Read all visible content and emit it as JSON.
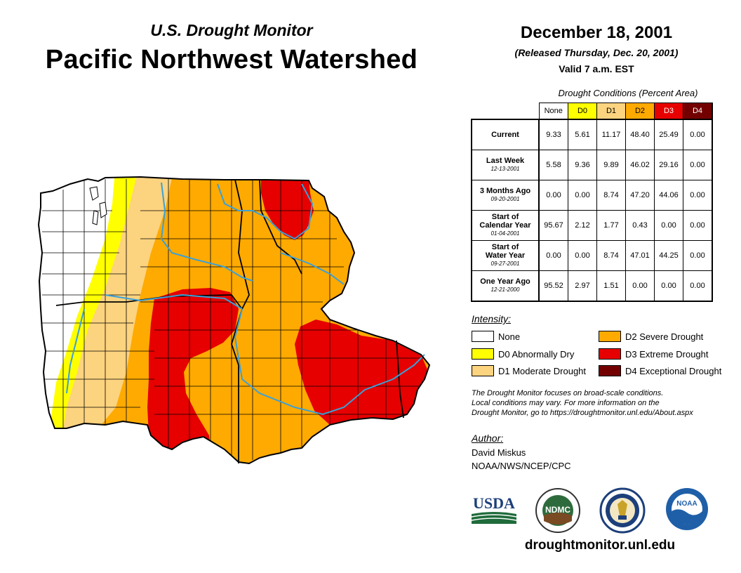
{
  "header": {
    "subtitle": "U.S. Drought Monitor",
    "title": "Pacific Northwest Watershed",
    "date": "December 18, 2001",
    "released": "(Released Thursday, Dec. 20, 2001)",
    "valid": "Valid 7 a.m. EST"
  },
  "table": {
    "caption": "Drought Conditions (Percent Area)",
    "columns": [
      "None",
      "D0",
      "D1",
      "D2",
      "D3",
      "D4"
    ],
    "column_colors": [
      "#ffffff",
      "#ffff00",
      "#fcd37f",
      "#ffaa00",
      "#e60000",
      "#730000"
    ],
    "rows": [
      {
        "label": "Current",
        "label2": "",
        "date": "",
        "values": [
          "9.33",
          "5.61",
          "11.17",
          "48.40",
          "25.49",
          "0.00"
        ]
      },
      {
        "label": "Last Week",
        "label2": "",
        "date": "12-13-2001",
        "values": [
          "5.58",
          "9.36",
          "9.89",
          "46.02",
          "29.16",
          "0.00"
        ]
      },
      {
        "label": "3 Months Ago",
        "label2": "",
        "date": "09-20-2001",
        "values": [
          "0.00",
          "0.00",
          "8.74",
          "47.20",
          "44.06",
          "0.00"
        ]
      },
      {
        "label": "Start of",
        "label2": "Calendar Year",
        "date": "01-04-2001",
        "values": [
          "95.67",
          "2.12",
          "1.77",
          "0.43",
          "0.00",
          "0.00"
        ]
      },
      {
        "label": "Start of",
        "label2": "Water Year",
        "date": "09-27-2001",
        "values": [
          "0.00",
          "0.00",
          "8.74",
          "47.01",
          "44.25",
          "0.00"
        ]
      },
      {
        "label": "One Year Ago",
        "label2": "",
        "date": "12-21-2000",
        "values": [
          "95.52",
          "2.97",
          "1.51",
          "0.00",
          "0.00",
          "0.00"
        ]
      }
    ]
  },
  "legend": {
    "heading": "Intensity:",
    "items": [
      {
        "label": "None",
        "color": "#ffffff"
      },
      {
        "label": "D0 Abnormally Dry",
        "color": "#ffff00"
      },
      {
        "label": "D1 Moderate Drought",
        "color": "#fcd37f"
      },
      {
        "label": "D2 Severe Drought",
        "color": "#ffaa00"
      },
      {
        "label": "D3 Extreme Drought",
        "color": "#e60000"
      },
      {
        "label": "D4 Exceptional Drought",
        "color": "#730000"
      }
    ]
  },
  "disclaimer": {
    "line1": "The Drought Monitor focuses on broad-scale conditions.",
    "line2": "Local conditions may vary. For more information on the",
    "line3": "Drought Monitor, go to https://droughtmonitor.unl.edu/About.aspx"
  },
  "author": {
    "heading": "Author:",
    "name": "David Miskus",
    "org": "NOAA/NWS/NCEP/CPC"
  },
  "logos": {
    "usda": "USDA",
    "ndmc": "NDMC",
    "noaa": "NOAA"
  },
  "website": "droughtmonitor.unl.edu",
  "colors": {
    "river": "#3aa0d8",
    "boundary": "#000000"
  }
}
